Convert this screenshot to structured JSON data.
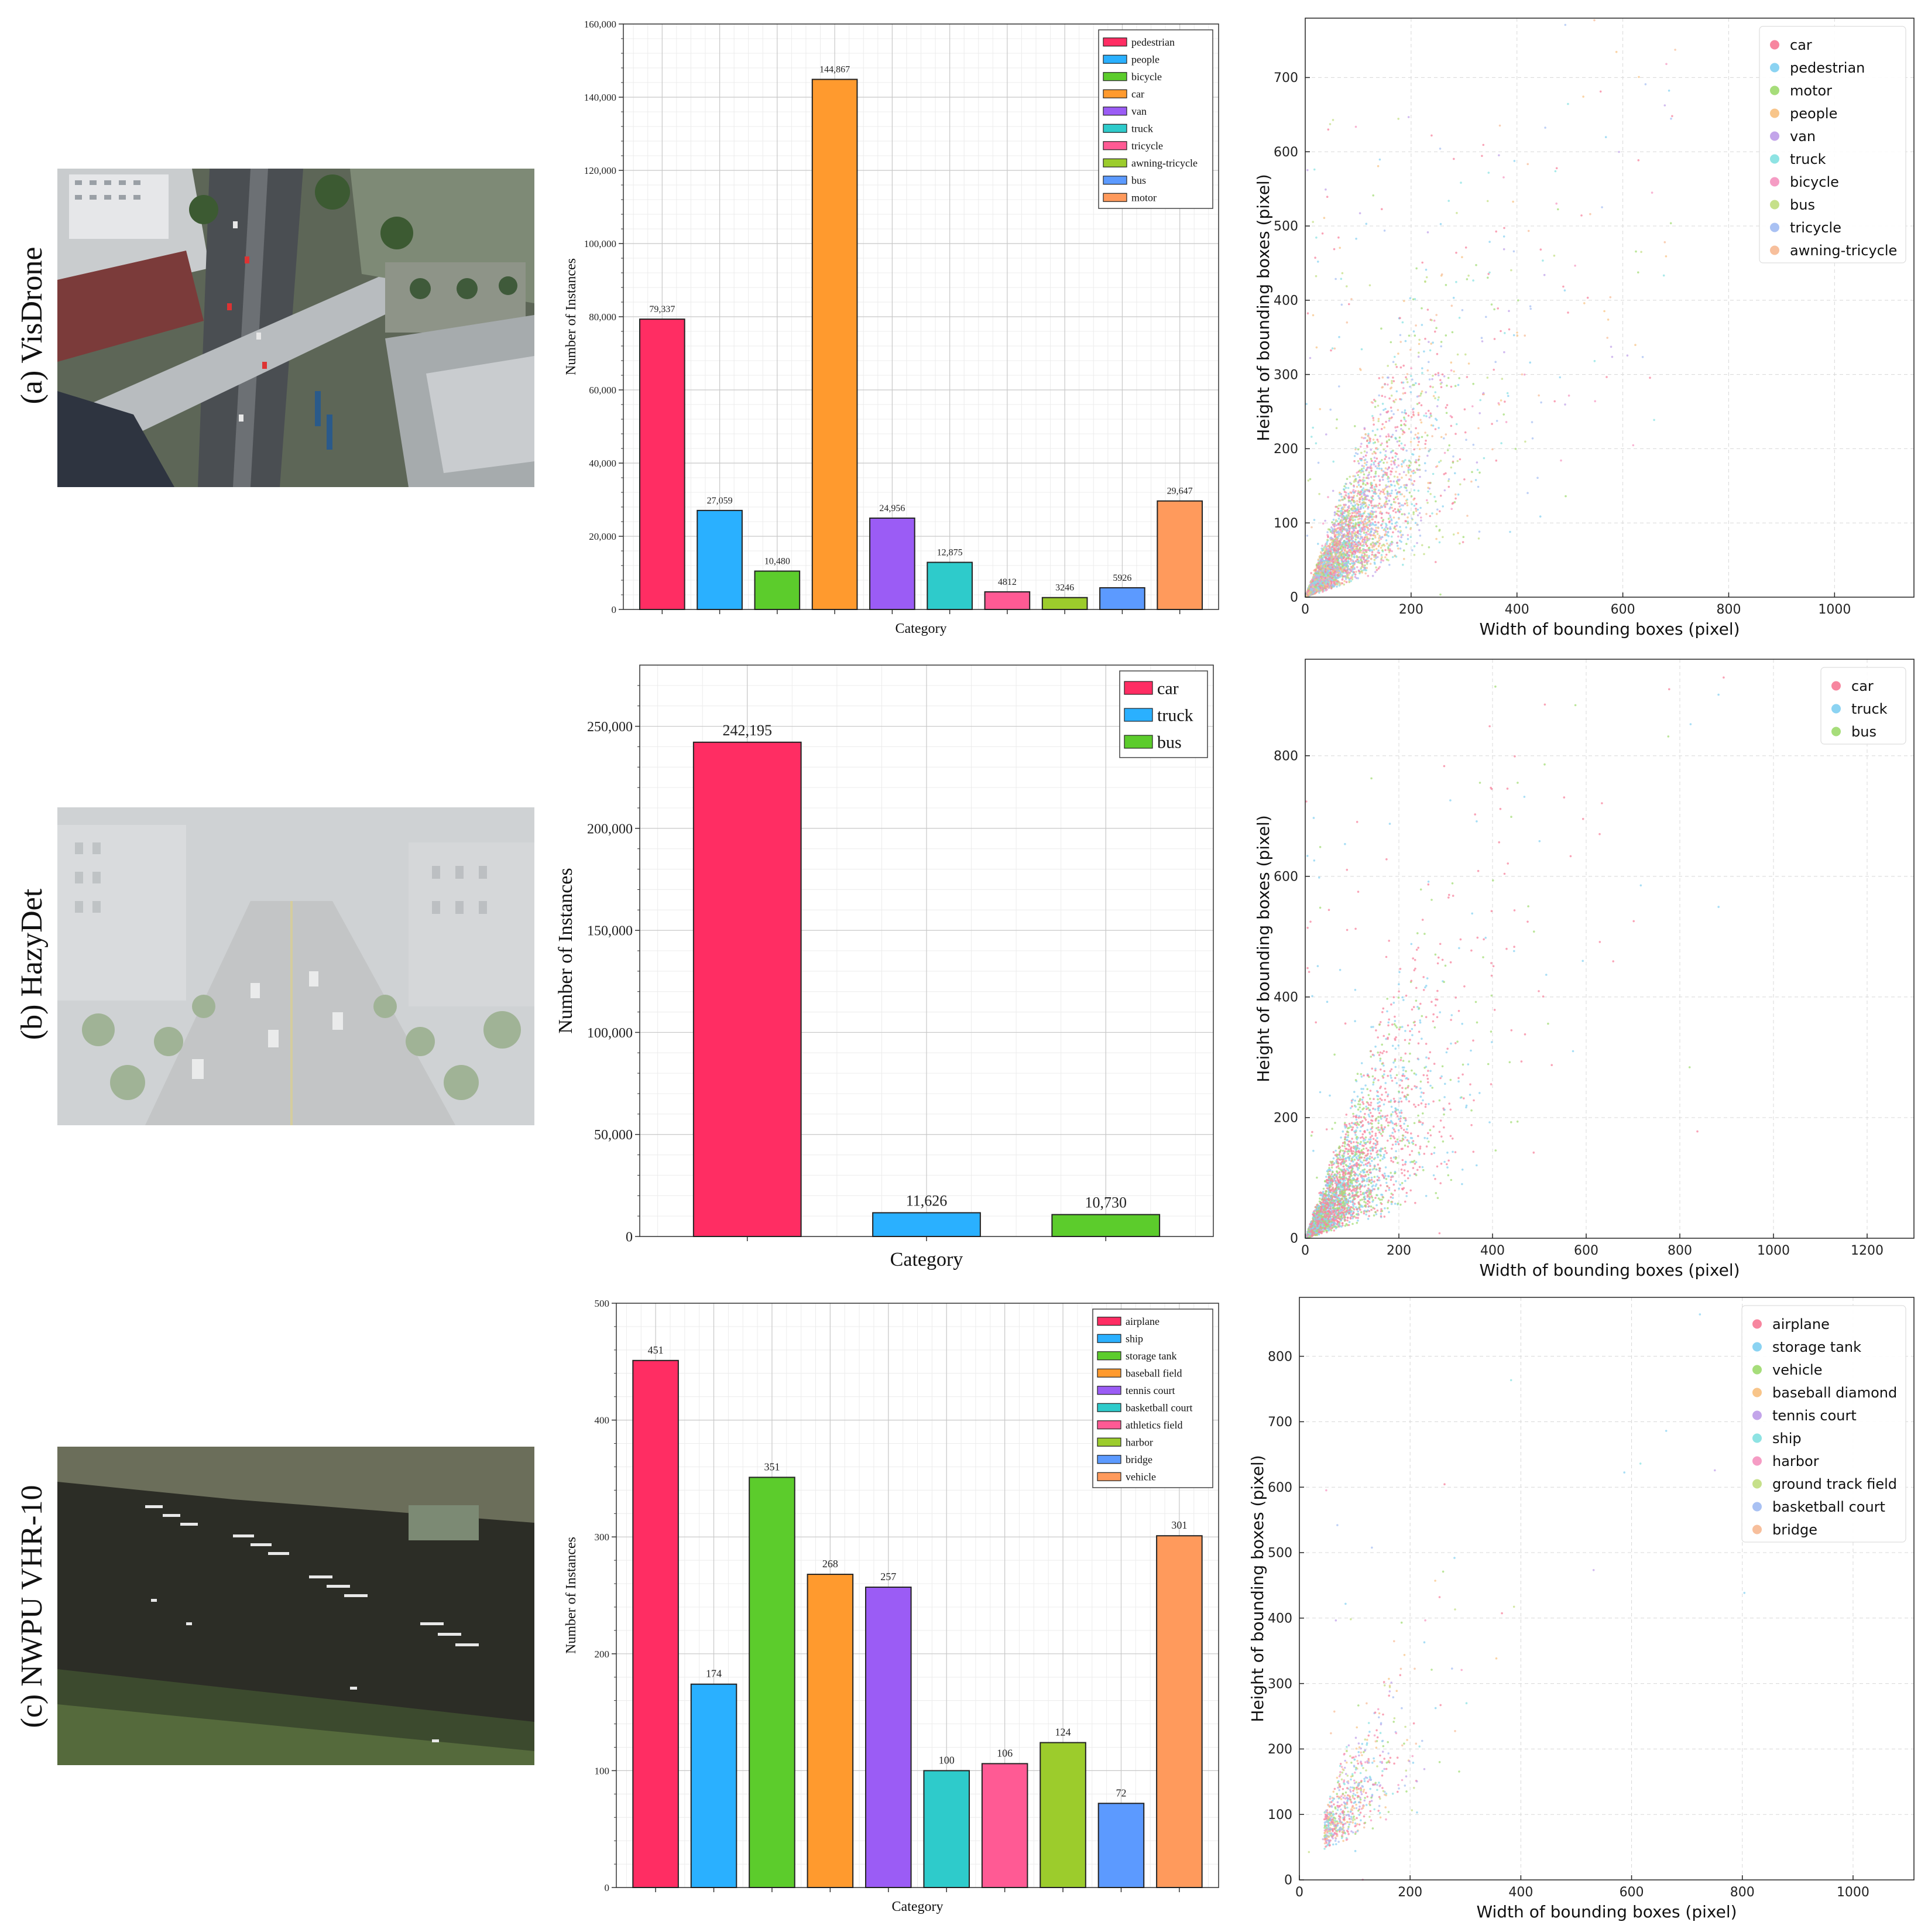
{
  "rows": [
    {
      "label": "(a) VisDrone"
    },
    {
      "label": "(b) HazyDet"
    },
    {
      "label": "(c) NWPU VHR-10"
    }
  ],
  "chart_data": [
    {
      "type": "bar",
      "dataset": "VisDrone",
      "xlabel": "Category",
      "ylabel": "Number of Instances",
      "ylim": [
        0,
        160000
      ],
      "yticks": [
        0,
        20000,
        40000,
        60000,
        80000,
        100000,
        120000,
        140000,
        160000
      ],
      "ytick_labels": [
        "0",
        "20,000",
        "40,000",
        "60,000",
        "80,000",
        "100,000",
        "120,000",
        "140,000",
        "160,000"
      ],
      "categories": [
        "pedestrian",
        "people",
        "bicycle",
        "car",
        "van",
        "truck",
        "tricycle",
        "awning-tricycle",
        "bus",
        "motor"
      ],
      "values": [
        79337,
        27059,
        10480,
        144867,
        24956,
        12875,
        4812,
        3246,
        5926,
        29647
      ],
      "value_labels": [
        "79,337",
        "27,059",
        "10,480",
        "144,867",
        "24,956",
        "12,875",
        "4812",
        "3246",
        "5926",
        "29,647"
      ],
      "colors": [
        "#ff2d63",
        "#2ab0ff",
        "#5ccc2c",
        "#ff9a2e",
        "#9b5cf5",
        "#2ecbcb",
        "#ff5a94",
        "#9ccc2c",
        "#5c9aff",
        "#ff9a5c"
      ],
      "legend": "top-right",
      "grid": true
    },
    {
      "type": "scatter",
      "dataset": "VisDrone",
      "xlabel": "Width of bounding boxes (pixel)",
      "ylabel": "Height of bounding boxes (pixel)",
      "xlim": [
        0,
        1150
      ],
      "ylim": [
        0,
        780
      ],
      "xticks": [
        0,
        200,
        400,
        600,
        800,
        1000
      ],
      "yticks": [
        0,
        100,
        200,
        300,
        400,
        500,
        600,
        700
      ],
      "series": [
        {
          "name": "car",
          "color": "#f7869f"
        },
        {
          "name": "pedestrian",
          "color": "#8bd3f2"
        },
        {
          "name": "motor",
          "color": "#a6dd7a"
        },
        {
          "name": "people",
          "color": "#f8c58a"
        },
        {
          "name": "van",
          "color": "#c3a5ea"
        },
        {
          "name": "truck",
          "color": "#8ee3e3"
        },
        {
          "name": "bicycle",
          "color": "#f59cc4"
        },
        {
          "name": "bus",
          "color": "#c6e08a"
        },
        {
          "name": "tricycle",
          "color": "#a9c1f3"
        },
        {
          "name": "awning-tricycle",
          "color": "#f7bf9c"
        }
      ],
      "legend": "top-right",
      "grid": true
    },
    {
      "type": "bar",
      "dataset": "HazyDet",
      "xlabel": "Category",
      "ylabel": "Number of Instances",
      "ylim": [
        0,
        280000
      ],
      "yticks": [
        0,
        50000,
        100000,
        150000,
        200000,
        250000
      ],
      "ytick_labels": [
        "0",
        "50,000",
        "100,000",
        "150,000",
        "200,000",
        "250,000"
      ],
      "categories": [
        "car",
        "truck",
        "bus"
      ],
      "values": [
        242195,
        11626,
        10730
      ],
      "value_labels": [
        "242,195",
        "11,626",
        "10,730"
      ],
      "colors": [
        "#ff2d63",
        "#2ab0ff",
        "#5ccc2c"
      ],
      "legend": "top-right",
      "grid": true
    },
    {
      "type": "scatter",
      "dataset": "HazyDet",
      "xlabel": "Width of bounding boxes (pixel)",
      "ylabel": "Height of bounding boxes (pixel)",
      "xlim": [
        0,
        1300
      ],
      "ylim": [
        0,
        960
      ],
      "xticks": [
        0,
        200,
        400,
        600,
        800,
        1000,
        1200
      ],
      "yticks": [
        0,
        200,
        400,
        600,
        800
      ],
      "series": [
        {
          "name": "car",
          "color": "#f7869f"
        },
        {
          "name": "truck",
          "color": "#8bd3f2"
        },
        {
          "name": "bus",
          "color": "#a6dd7a"
        }
      ],
      "legend": "top-right",
      "grid": true
    },
    {
      "type": "bar",
      "dataset": "NWPU VHR-10",
      "xlabel": "Category",
      "ylabel": "Number of Instances",
      "ylim": [
        0,
        500
      ],
      "yticks": [
        0,
        100,
        200,
        300,
        400,
        500
      ],
      "ytick_labels": [
        "0",
        "100",
        "200",
        "300",
        "400",
        "500"
      ],
      "categories": [
        "airplane",
        "ship",
        "storage tank",
        "baseball field",
        "tennis court",
        "basketball court",
        "athletics field",
        "harbor",
        "bridge",
        "vehicle"
      ],
      "values": [
        451,
        174,
        351,
        268,
        257,
        100,
        106,
        124,
        72,
        301
      ],
      "value_labels": [
        "451",
        "174",
        "351",
        "268",
        "257",
        "100",
        "106",
        "124",
        "72",
        "301"
      ],
      "colors": [
        "#ff2d63",
        "#2ab0ff",
        "#5ccc2c",
        "#ff9a2e",
        "#9b5cf5",
        "#2ecbcb",
        "#ff5a94",
        "#9ccc2c",
        "#5c9aff",
        "#ff9a5c"
      ],
      "legend": "top-right",
      "grid": true
    },
    {
      "type": "scatter",
      "dataset": "NWPU VHR-10",
      "xlabel": "Width of bounding boxes (pixel)",
      "ylabel": "Height of bounding boxes (pixel)",
      "xlim": [
        0,
        1110
      ],
      "ylim": [
        0,
        890
      ],
      "xticks": [
        0,
        200,
        400,
        600,
        800,
        1000
      ],
      "yticks": [
        0,
        100,
        200,
        300,
        400,
        500,
        600,
        700,
        800
      ],
      "series": [
        {
          "name": "airplane",
          "color": "#f7869f"
        },
        {
          "name": "storage tank",
          "color": "#8bd3f2"
        },
        {
          "name": "vehicle",
          "color": "#a6dd7a"
        },
        {
          "name": "baseball diamond",
          "color": "#f8c58a"
        },
        {
          "name": "tennis court",
          "color": "#c3a5ea"
        },
        {
          "name": "ship",
          "color": "#8ee3e3"
        },
        {
          "name": "harbor",
          "color": "#f59cc4"
        },
        {
          "name": "ground track field",
          "color": "#c6e08a"
        },
        {
          "name": "basketball court",
          "color": "#a9c1f3"
        },
        {
          "name": "bridge",
          "color": "#f7bf9c"
        }
      ],
      "legend": "top-right",
      "grid": true
    }
  ]
}
